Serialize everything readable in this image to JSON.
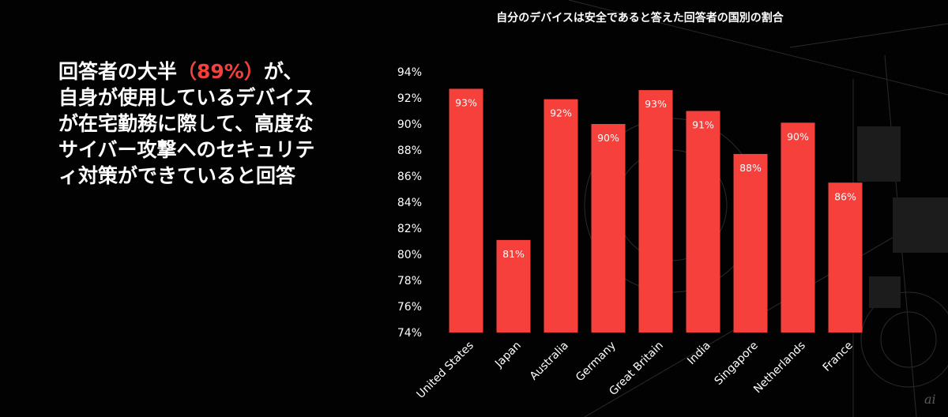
{
  "slide": {
    "lead_text_before": "回答者の大半",
    "lead_highlight": "（89%）",
    "lead_text_after": "が、自身が使用しているデバイスが在宅勤務に際して、高度なサイバー攻撃へのセキュリティ対策ができていると回答",
    "watermark": "ai",
    "highlight_color": "#f5403c"
  },
  "chart_data": {
    "type": "bar",
    "title": "自分のデバイスは安全であると答えた回答者の国別の割合",
    "categories": [
      "United States",
      "Japan",
      "Australia",
      "Germany",
      "Great Britain",
      "India",
      "Singapore",
      "Netherlands",
      "France"
    ],
    "values": [
      92.7,
      81.1,
      91.9,
      90.0,
      92.6,
      91.0,
      87.7,
      90.1,
      85.5
    ],
    "data_labels": [
      "93%",
      "81%",
      "92%",
      "90%",
      "93%",
      "91%",
      "88%",
      "90%",
      "86%"
    ],
    "yticks": [
      "74%",
      "76%",
      "78%",
      "80%",
      "82%",
      "84%",
      "86%",
      "88%",
      "90%",
      "92%",
      "94%"
    ],
    "ylim": [
      74,
      94
    ],
    "xlabel": "",
    "ylabel": "",
    "bar_color": "#f5403c",
    "grid": false,
    "legend": "none"
  }
}
